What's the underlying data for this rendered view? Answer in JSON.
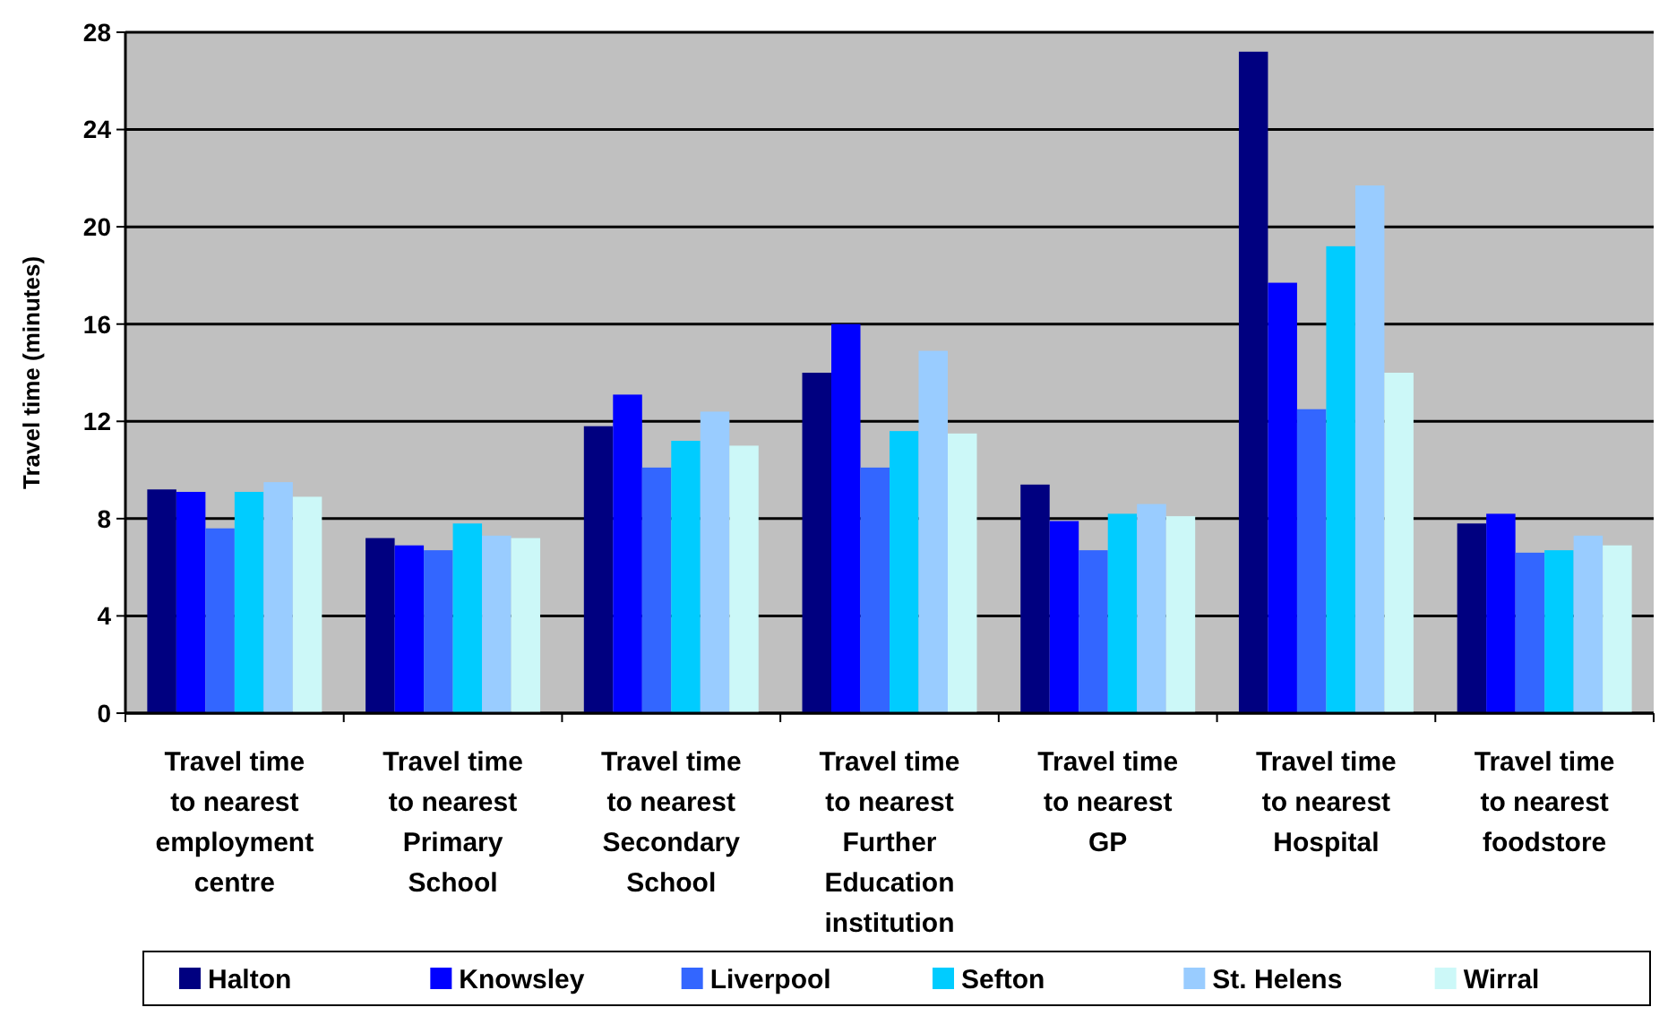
{
  "chart_data": {
    "type": "bar",
    "ylabel": "Travel time (minutes)",
    "categories": [
      "Travel time to nearest employment centre",
      "Travel time to nearest Primary School",
      "Travel time to nearest Secondary School",
      "Travel time to nearest Further Education institution",
      "Travel time to nearest GP",
      "Travel time to nearest Hospital",
      "Travel time to nearest foodstore"
    ],
    "series": [
      {
        "name": "Halton",
        "color": "#000080",
        "values": [
          9.2,
          7.2,
          11.8,
          14.0,
          9.4,
          27.2,
          7.8
        ]
      },
      {
        "name": "Knowsley",
        "color": "#0000ff",
        "values": [
          9.1,
          6.9,
          13.1,
          16.0,
          7.9,
          17.7,
          8.2
        ]
      },
      {
        "name": "Liverpool",
        "color": "#3366ff",
        "values": [
          7.6,
          6.7,
          10.1,
          10.1,
          6.7,
          12.5,
          6.6
        ]
      },
      {
        "name": "Sefton",
        "color": "#00ccff",
        "values": [
          9.1,
          7.8,
          11.2,
          11.6,
          8.2,
          19.2,
          6.7
        ]
      },
      {
        "name": "St. Helens",
        "color": "#99ccff",
        "values": [
          9.5,
          7.3,
          12.4,
          14.9,
          8.6,
          21.7,
          7.3
        ]
      },
      {
        "name": "Wirral",
        "color": "#ccf8f8",
        "values": [
          8.9,
          7.2,
          11.0,
          11.5,
          8.1,
          14.0,
          6.9
        ]
      }
    ],
    "ylim": [
      0,
      28
    ],
    "yticks": [
      0,
      4,
      8,
      12,
      16,
      20,
      24,
      28
    ],
    "grid": "y",
    "legend": "bottom"
  }
}
